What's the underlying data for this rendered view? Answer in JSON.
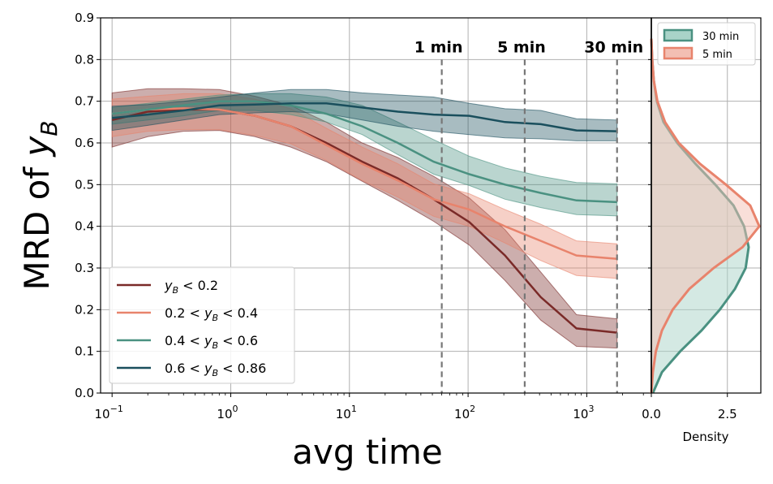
{
  "chart_data": [
    {
      "type": "line",
      "xscale": "log",
      "xlabel": "avg time",
      "ylabel_text": "MRD of ",
      "ylabel_symbol": "y",
      "ylabel_sub": "B",
      "xlim": [
        0.08,
        3500
      ],
      "ylim": [
        0,
        0.9
      ],
      "grid": true,
      "legend_loc": "lower-left",
      "x_ticks": [
        {
          "value": 0.1,
          "base": "10",
          "exp": "−1"
        },
        {
          "value": 1,
          "base": "10",
          "exp": "0"
        },
        {
          "value": 10,
          "base": "10",
          "exp": "1"
        },
        {
          "value": 100,
          "base": "10",
          "exp": "2"
        },
        {
          "value": 1000,
          "base": "10",
          "exp": "3"
        }
      ],
      "y_ticks": [
        "0.0",
        "0.1",
        "0.2",
        "0.3",
        "0.4",
        "0.5",
        "0.6",
        "0.7",
        "0.8",
        "0.9"
      ],
      "x": [
        0.1,
        0.2,
        0.4,
        0.8,
        1.6,
        3.2,
        6.4,
        12.8,
        25.6,
        51.2,
        102.4,
        204.8,
        409.6,
        819.2,
        1800
      ],
      "series": [
        {
          "name": "yB < 0.2",
          "legend_parts": [
            "y",
            "B",
            " < 0.2"
          ],
          "color": "#7a2a28",
          "mean": [
            0.655,
            0.675,
            0.68,
            0.68,
            0.665,
            0.64,
            0.6,
            0.555,
            0.515,
            0.465,
            0.41,
            0.33,
            0.23,
            0.155,
            0.145
          ],
          "lower": [
            0.59,
            0.615,
            0.628,
            0.63,
            0.615,
            0.59,
            0.555,
            0.508,
            0.462,
            0.412,
            0.355,
            0.27,
            0.175,
            0.112,
            0.108
          ],
          "upper": [
            0.72,
            0.73,
            0.73,
            0.728,
            0.712,
            0.69,
            0.65,
            0.6,
            0.565,
            0.52,
            0.468,
            0.392,
            0.29,
            0.188,
            0.178
          ]
        },
        {
          "name": "0.2 < yB < 0.4",
          "legend_parts": [
            "0.2 < ",
            "y",
            "B",
            " < 0.4"
          ],
          "color": "#e8836c",
          "mean": [
            0.67,
            0.68,
            0.683,
            0.68,
            0.665,
            0.64,
            0.595,
            0.55,
            0.51,
            0.465,
            0.44,
            0.4,
            0.365,
            0.33,
            0.322
          ],
          "lower": [
            0.615,
            0.628,
            0.632,
            0.632,
            0.618,
            0.598,
            0.558,
            0.51,
            0.47,
            0.424,
            0.4,
            0.36,
            0.318,
            0.282,
            0.275
          ],
          "upper": [
            0.705,
            0.712,
            0.718,
            0.718,
            0.705,
            0.682,
            0.635,
            0.59,
            0.55,
            0.502,
            0.478,
            0.44,
            0.405,
            0.365,
            0.358
          ]
        },
        {
          "name": "0.4 < yB < 0.6",
          "legend_parts": [
            "0.4 < ",
            "y",
            "B",
            " < 0.6"
          ],
          "color": "#4a9181",
          "mean": [
            0.67,
            0.68,
            0.69,
            0.7,
            0.7,
            0.69,
            0.67,
            0.64,
            0.6,
            0.555,
            0.525,
            0.5,
            0.48,
            0.462,
            0.458
          ],
          "lower": [
            0.645,
            0.655,
            0.665,
            0.678,
            0.678,
            0.668,
            0.65,
            0.62,
            0.572,
            0.525,
            0.498,
            0.465,
            0.445,
            0.428,
            0.425
          ],
          "upper": [
            0.685,
            0.695,
            0.705,
            0.715,
            0.718,
            0.718,
            0.71,
            0.69,
            0.65,
            0.608,
            0.568,
            0.54,
            0.52,
            0.505,
            0.502
          ]
        },
        {
          "name": "0.6 < yB < 0.86",
          "legend_parts": [
            "0.6 < ",
            "y",
            "B",
            " < 0.86"
          ],
          "color": "#1a4f5d",
          "mean": [
            0.66,
            0.668,
            0.678,
            0.69,
            0.692,
            0.695,
            0.695,
            0.685,
            0.675,
            0.668,
            0.665,
            0.65,
            0.645,
            0.63,
            0.628
          ],
          "lower": [
            0.63,
            0.642,
            0.655,
            0.668,
            0.672,
            0.675,
            0.67,
            0.655,
            0.64,
            0.628,
            0.62,
            0.612,
            0.61,
            0.605,
            0.605
          ],
          "upper": [
            0.688,
            0.692,
            0.7,
            0.71,
            0.72,
            0.728,
            0.728,
            0.72,
            0.715,
            0.71,
            0.695,
            0.682,
            0.678,
            0.658,
            0.655
          ]
        }
      ],
      "vlines": [
        {
          "x": 60,
          "label": "1 min"
        },
        {
          "x": 300,
          "label": "5 min"
        },
        {
          "x": 1800,
          "label": "30 min"
        }
      ]
    },
    {
      "type": "area",
      "orientation": "horizontal-density",
      "xlabel": "Density",
      "xlim": [
        0,
        3.6
      ],
      "ylim": [
        0,
        0.9
      ],
      "x_ticks": [
        "0.0",
        "2.5"
      ],
      "x_tick_values": [
        0,
        2.5
      ],
      "legend_loc": "top-right",
      "y": [
        0.0,
        0.05,
        0.1,
        0.15,
        0.2,
        0.25,
        0.3,
        0.35,
        0.4,
        0.45,
        0.5,
        0.55,
        0.6,
        0.65,
        0.7,
        0.75,
        0.8,
        0.85
      ],
      "series": [
        {
          "name": "30 min",
          "color": "#4a9181",
          "fill": "#a9d3c8",
          "density": [
            0.05,
            0.35,
            0.95,
            1.65,
            2.25,
            2.75,
            3.1,
            3.2,
            3.05,
            2.7,
            2.1,
            1.45,
            0.85,
            0.4,
            0.18,
            0.08,
            0.03,
            0.0
          ]
        },
        {
          "name": "5 min",
          "color": "#e8836c",
          "fill": "#f3bfb3",
          "density": [
            0.0,
            0.05,
            0.15,
            0.35,
            0.7,
            1.25,
            2.05,
            3.0,
            3.55,
            3.25,
            2.45,
            1.6,
            0.9,
            0.45,
            0.2,
            0.08,
            0.03,
            0.0
          ]
        }
      ]
    }
  ]
}
